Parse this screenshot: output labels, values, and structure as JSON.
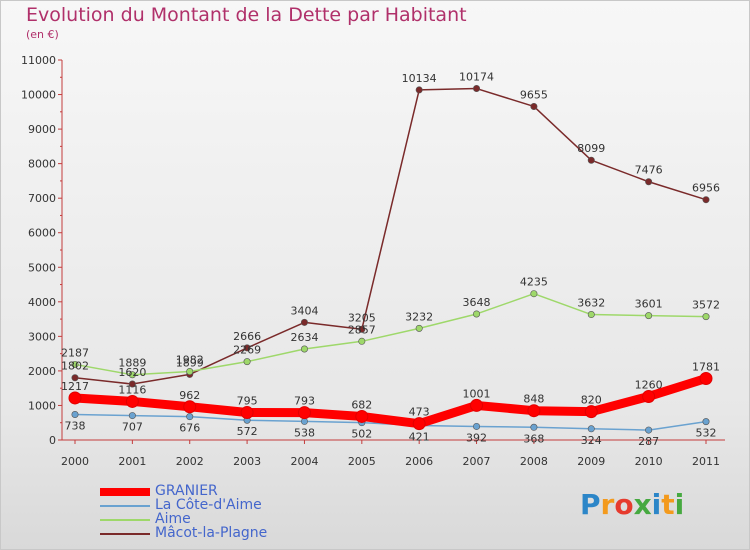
{
  "title": "Evolution du Montant de la Dette par Habitant",
  "subtitle": "(en €)",
  "logo": {
    "letters": [
      "P",
      "r",
      "o",
      "x",
      "i",
      "t",
      "i"
    ],
    "colors": [
      "#2c86c8",
      "#f39a1d",
      "#e63b2e",
      "#46a940",
      "#2c86c8",
      "#f39a1d",
      "#46a940"
    ]
  },
  "chart_data": {
    "type": "line",
    "x": [
      "2000",
      "2001",
      "2002",
      "2003",
      "2004",
      "2005",
      "2006",
      "2007",
      "2008",
      "2009",
      "2010",
      "2011"
    ],
    "ylim": [
      0,
      11000
    ],
    "yticks": [
      0,
      1000,
      2000,
      3000,
      4000,
      5000,
      6000,
      7000,
      8000,
      9000,
      10000,
      11000
    ],
    "grid": false,
    "legend_position": "bottom-left",
    "series": [
      {
        "name": "GRANIER",
        "color": "#ff0000",
        "values": [
          1217,
          1116,
          962,
          795,
          793,
          682,
          473,
          1001,
          848,
          820,
          1260,
          1781
        ]
      },
      {
        "name": "La Côte-d'Aime",
        "color": "#6aa2d0",
        "values": [
          738,
          707,
          676,
          572,
          538,
          502,
          421,
          392,
          368,
          324,
          287,
          532
        ]
      },
      {
        "name": "Aime",
        "color": "#9ed86a",
        "values": [
          2187,
          1889,
          1982,
          2269,
          2634,
          2857,
          3232,
          3648,
          4235,
          3632,
          3601,
          3572
        ]
      },
      {
        "name": "Mâcot-la-Plagne",
        "color": "#7a2a2a",
        "values": [
          1802,
          1620,
          1899,
          2666,
          3404,
          3205,
          10134,
          10174,
          9655,
          8099,
          7476,
          6956
        ]
      }
    ]
  }
}
